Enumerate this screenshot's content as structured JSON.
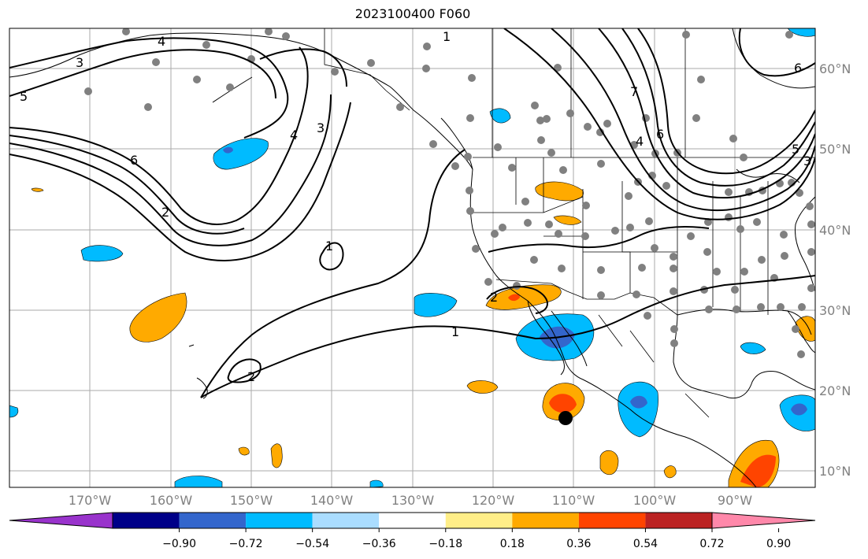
{
  "title": "2023100400 F060",
  "map": {
    "lat_labels": [
      "60°N",
      "50°N",
      "40°N",
      "30°N",
      "20°N",
      "10°N"
    ],
    "lon_labels": [
      "170°W",
      "160°W",
      "150°W",
      "140°W",
      "130°W",
      "120°W",
      "110°W",
      "100°W",
      "90°W"
    ],
    "contour_labels": [
      "3",
      "4",
      "5",
      "6",
      "4",
      "3",
      "2",
      "1",
      "2",
      "1",
      "1",
      "2",
      "6",
      "4",
      "5",
      "3",
      "7",
      "6"
    ]
  },
  "colorbar": {
    "tick_labels": [
      "−0.90",
      "−0.72",
      "−0.54",
      "−0.36",
      "−0.18",
      "0.18",
      "0.36",
      "0.54",
      "0.72",
      "0.90"
    ],
    "colors": [
      "#9933cc",
      "#000088",
      "#3366cc",
      "#00bbff",
      "#aaddff",
      "#ffffff",
      "#ffee88",
      "#ffaa00",
      "#ff4400",
      "#bb2222",
      "#ff88aa"
    ]
  }
}
